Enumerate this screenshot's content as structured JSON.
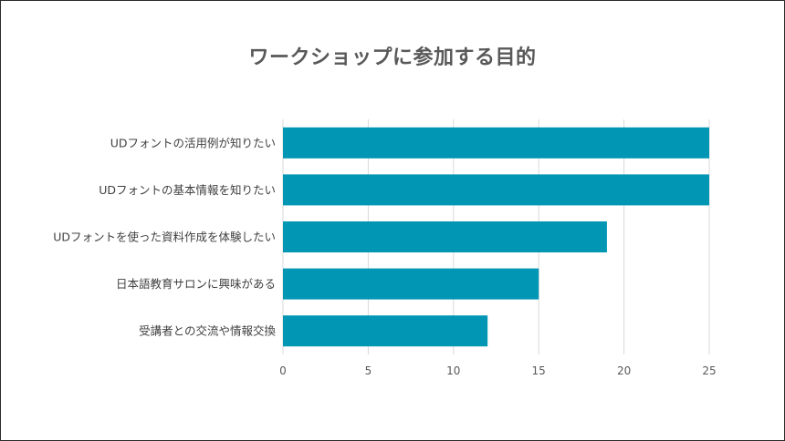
{
  "chart_data": {
    "type": "bar",
    "orientation": "horizontal",
    "title": "ワークショップに参加する目的",
    "categories": [
      "UDフォントの活用例が知りたい",
      "UDフォントの基本情報を知りたい",
      "UDフォントを使った資料作成を体験したい",
      "日本語教育サロンに興味がある",
      "受講者との交流や情報交換"
    ],
    "values": [
      25,
      25,
      19,
      15,
      12
    ],
    "xlim": [
      0,
      25
    ],
    "xticks": [
      "0",
      "5",
      "10",
      "15",
      "20",
      "25"
    ],
    "xlabel": "",
    "ylabel": "",
    "grid": true,
    "legend": "none",
    "bar_color": "#0096b4"
  }
}
